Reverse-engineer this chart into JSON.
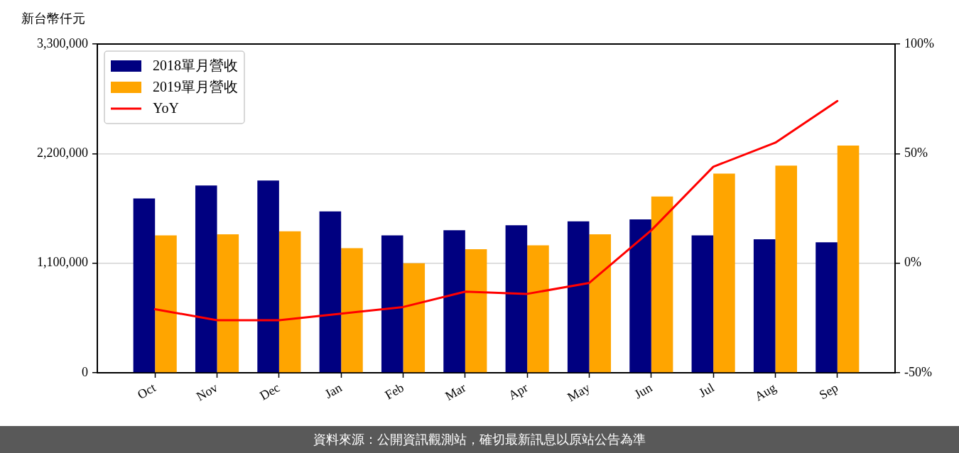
{
  "chart_data": {
    "type": "bar",
    "ylabel": "新台幣仟元",
    "categories": [
      "Oct",
      "Nov",
      "Dec",
      "Jan",
      "Feb",
      "Mar",
      "Apr",
      "May",
      "Jun",
      "Jul",
      "Aug",
      "Sep"
    ],
    "series": [
      {
        "name": "2018單月營收",
        "color": "#000080",
        "values": [
          1750000,
          1880000,
          1930000,
          1620000,
          1380000,
          1430000,
          1480000,
          1520000,
          1540000,
          1380000,
          1340000,
          1310000
        ]
      },
      {
        "name": "2019單月營收",
        "color": "#ffa500",
        "values": [
          1380000,
          1390000,
          1420000,
          1250000,
          1100000,
          1240000,
          1280000,
          1390000,
          1770000,
          2000000,
          2080000,
          2280000
        ]
      },
      {
        "name": "YoY",
        "type": "line",
        "axis": "y2",
        "color": "#ff0000",
        "values": [
          -21,
          -26,
          -26,
          -23,
          -20,
          -13,
          -14,
          -9,
          15,
          44,
          55,
          74
        ]
      }
    ],
    "ylim": [
      0,
      3300000
    ],
    "yticks": [
      0,
      {
        "value": 1100000,
        "label": "1,100,000"
      },
      {
        "value": 2200000,
        "label": "2,200,000"
      },
      {
        "value": 3300000,
        "label": "3,300,000"
      }
    ],
    "y2lim": [
      -50,
      100
    ],
    "y2ticks": [
      {
        "value": -50,
        "label": "-50%"
      },
      {
        "value": 0,
        "label": "0%"
      },
      {
        "value": 50,
        "label": "50%"
      },
      {
        "value": 100,
        "label": "100%"
      }
    ],
    "grid": "y",
    "legend": "top left",
    "annotations": [
      "資料來源：公開資訊觀測站，確切最新訊息以原站公告為準"
    ]
  }
}
